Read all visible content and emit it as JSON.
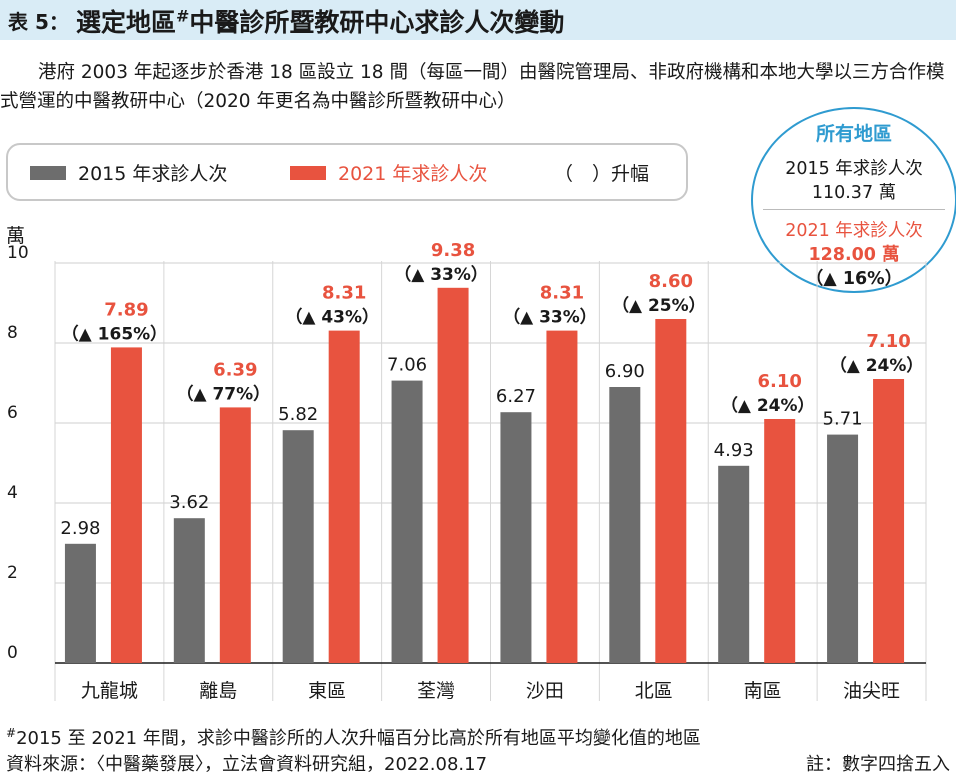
{
  "header": {
    "table_no": "表 5：",
    "title_a": "選定地區",
    "title_mark": "#",
    "title_b": "中醫診所暨教研中心求診人次變動"
  },
  "intro": "港府 2003 年起逐步於香港 18 區設立 18 間（每區一間）由醫院管理局、非政府機構和本地大學以三方合作模式營運的中醫教研中心（2020 年更名為中醫診所暨教研中心）",
  "legend": {
    "s1": "2015 年求診人次",
    "s2": "2021 年求診人次",
    "s3": "（　）升幅"
  },
  "summary": {
    "title": "所有地區",
    "line1": "2015 年求診人次",
    "value1": "110.37 萬",
    "line2": "2021 年求診人次",
    "value2": "128.00 萬",
    "change": "（▲ 16%）"
  },
  "unit_label": "萬",
  "chart_data": {
    "type": "bar",
    "categories": [
      "九龍城",
      "離島",
      "東區",
      "荃灣",
      "沙田",
      "北區",
      "南區",
      "油尖旺"
    ],
    "series": [
      {
        "name": "2015 年求診人次",
        "values": [
          2.98,
          3.62,
          5.82,
          7.06,
          6.27,
          6.9,
          4.93,
          5.71
        ],
        "labels": [
          "2.98",
          "3.62",
          "5.82",
          "7.06",
          "6.27",
          "6.90",
          "4.93",
          "5.71"
        ],
        "color": "#6d6d6d"
      },
      {
        "name": "2021 年求診人次",
        "values": [
          7.89,
          6.39,
          8.31,
          9.38,
          8.31,
          8.6,
          6.1,
          7.1
        ],
        "labels": [
          "7.89",
          "6.39",
          "8.31",
          "9.38",
          "8.31",
          "8.60",
          "6.10",
          "7.10"
        ],
        "color": "#e8533f"
      }
    ],
    "changes": [
      "（▲ 165%）",
      "（▲ 77%）",
      "（▲ 43%）",
      "（▲ 33%）",
      "（▲ 33%）",
      "（▲ 25%）",
      "（▲ 24%）",
      "（▲ 24%）"
    ],
    "yticks": [
      "0",
      "2",
      "4",
      "6",
      "8",
      "10"
    ],
    "ylim": [
      0,
      10
    ],
    "grid": true
  },
  "footnote": {
    "mark": "#",
    "text": "2015 至 2021 年間，求診中醫診所的人次升幅百分比高於所有地區平均變化值的地區",
    "source": "資料來源：〈中醫藥發展〉，立法會資料研究組，2022.08.17",
    "note": "註：數字四捨五入"
  },
  "colors": {
    "accent_blue": "#2f9bd0",
    "bar_2015": "#6d6d6d",
    "bar_2021": "#e8533f",
    "title_band": "#d9ecf6"
  }
}
